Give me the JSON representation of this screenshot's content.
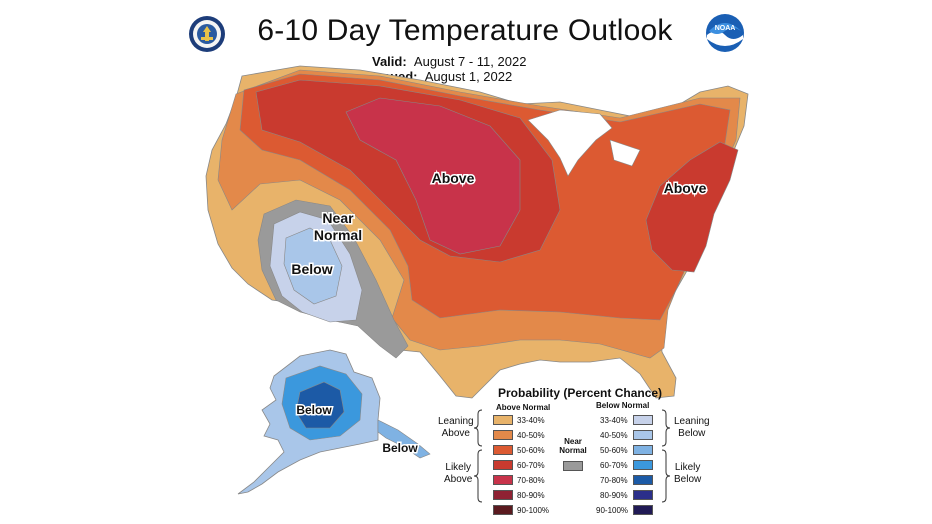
{
  "title": "6-10 Day Temperature Outlook",
  "valid_label": "Valid:",
  "valid_value": "August 7 - 11, 2022",
  "issued_label": "Issued:",
  "issued_value": "August 1, 2022",
  "logos": {
    "left": "commerce-seal",
    "right": "noaa-logo",
    "noaa_text": "NOAA"
  },
  "map_labels": {
    "above_central": "Above",
    "above_east": "Above",
    "near_normal_1": "Near",
    "near_normal_2": "Normal",
    "below_southwest": "Below",
    "below_alaska": "Below",
    "below_panhandle": "Below"
  },
  "legend": {
    "title": "Probability (Percent Chance)",
    "above_header": "Above Normal",
    "below_header": "Below Normal",
    "near_header_1": "Near",
    "near_header_2": "Normal",
    "leaning_above_1": "Leaning",
    "leaning_above_2": "Above",
    "likely_above_1": "Likely",
    "likely_above_2": "Above",
    "leaning_below_1": "Leaning",
    "leaning_below_2": "Below",
    "likely_below_1": "Likely",
    "likely_below_2": "Below",
    "above": [
      {
        "label": "33-40%",
        "color": "#e8b36a"
      },
      {
        "label": "40-50%",
        "color": "#e3894a"
      },
      {
        "label": "50-60%",
        "color": "#dc5a32"
      },
      {
        "label": "60-70%",
        "color": "#c93a2f"
      },
      {
        "label": "70-80%",
        "color": "#c8334a"
      },
      {
        "label": "80-90%",
        "color": "#8f2233"
      },
      {
        "label": "90-100%",
        "color": "#5a1a1f"
      }
    ],
    "below": [
      {
        "label": "33-40%",
        "color": "#c7d2ea"
      },
      {
        "label": "40-50%",
        "color": "#a9c6e9"
      },
      {
        "label": "50-60%",
        "color": "#7fb2e3"
      },
      {
        "label": "60-70%",
        "color": "#3b98dd"
      },
      {
        "label": "70-80%",
        "color": "#1c5aa6"
      },
      {
        "label": "80-90%",
        "color": "#2b2f8a"
      },
      {
        "label": "90-100%",
        "color": "#201a55"
      }
    ],
    "near_color": "#9a9a9a"
  }
}
